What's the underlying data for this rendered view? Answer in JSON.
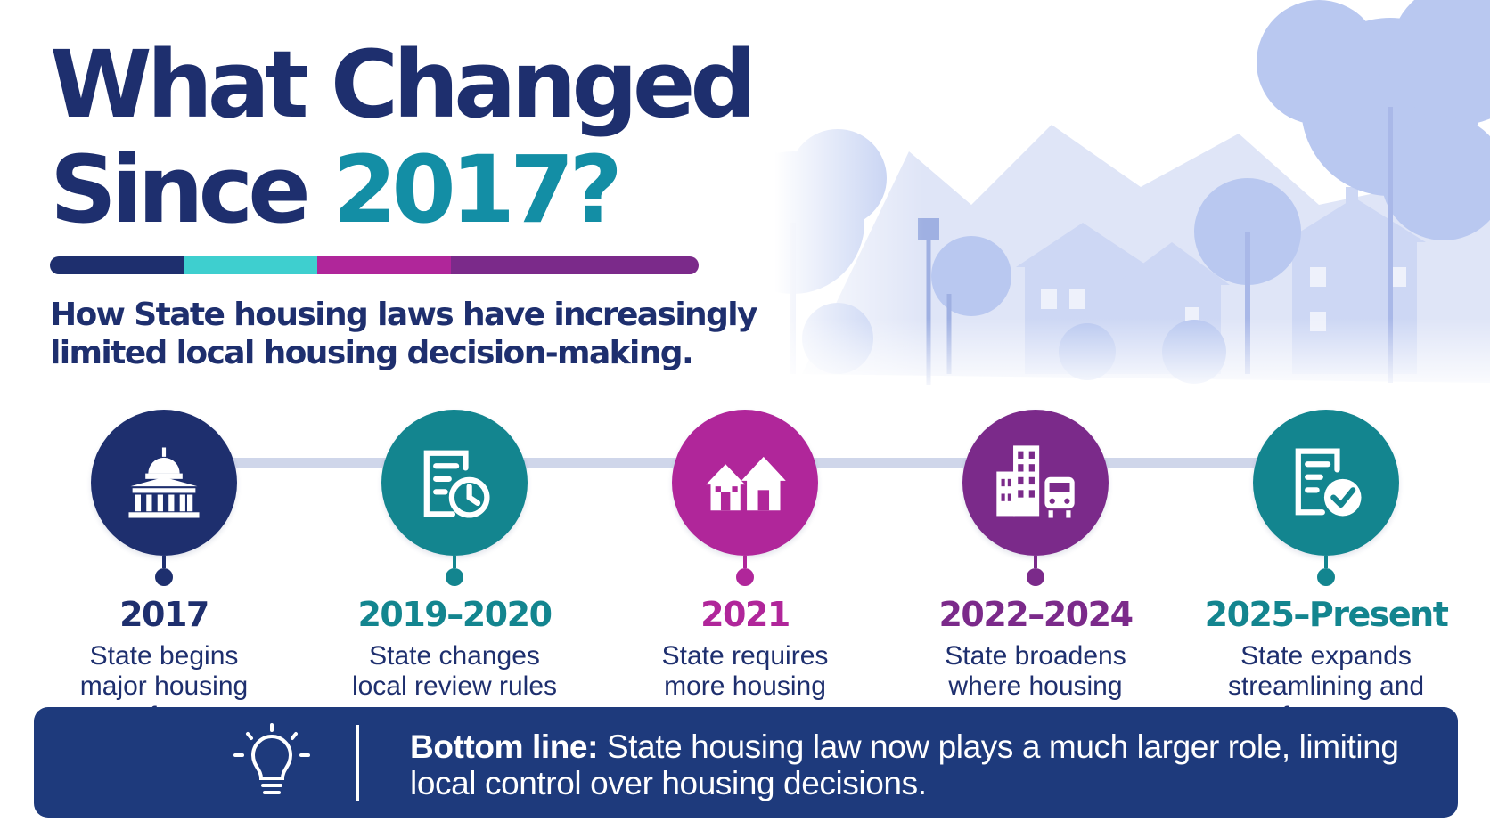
{
  "header": {
    "title_line1": "What Changed",
    "title_line2_prefix": "Since ",
    "title_line2_accent": "2017?",
    "subtitle": "How State housing laws have increasingly limited local housing decision-making."
  },
  "colors": {
    "navy": "#1e2f6e",
    "teal": "#138ea5",
    "cyan": "#3ecfcf",
    "magenta": "#b0269a",
    "purple": "#7b2a8a",
    "bottom_box": "#1e3a7c"
  },
  "timeline": [
    {
      "year": "2017",
      "desc": "State begins major housing reform",
      "icon": "capitol-building-icon",
      "color": "#1e2f6e"
    },
    {
      "year": "2019–2020",
      "desc": "State changes local review rules",
      "icon": "document-clock-icon",
      "color": "#13858f"
    },
    {
      "year": "2021",
      "desc": "State requires more housing types",
      "icon": "houses-icon",
      "color": "#b0269a"
    },
    {
      "year": "2022–2024",
      "desc": "State broadens where housing may go",
      "icon": "buildings-train-icon",
      "color": "#7b2a8a"
    },
    {
      "year": "2025–Present",
      "desc": "State expands streamlining and enforcement",
      "icon": "document-check-icon",
      "color": "#13858f"
    }
  ],
  "bottom": {
    "label": "Bottom line:",
    "text": " State housing law now plays a much larger role, limiting local control over housing decisions.",
    "icon": "lightbulb-icon"
  }
}
